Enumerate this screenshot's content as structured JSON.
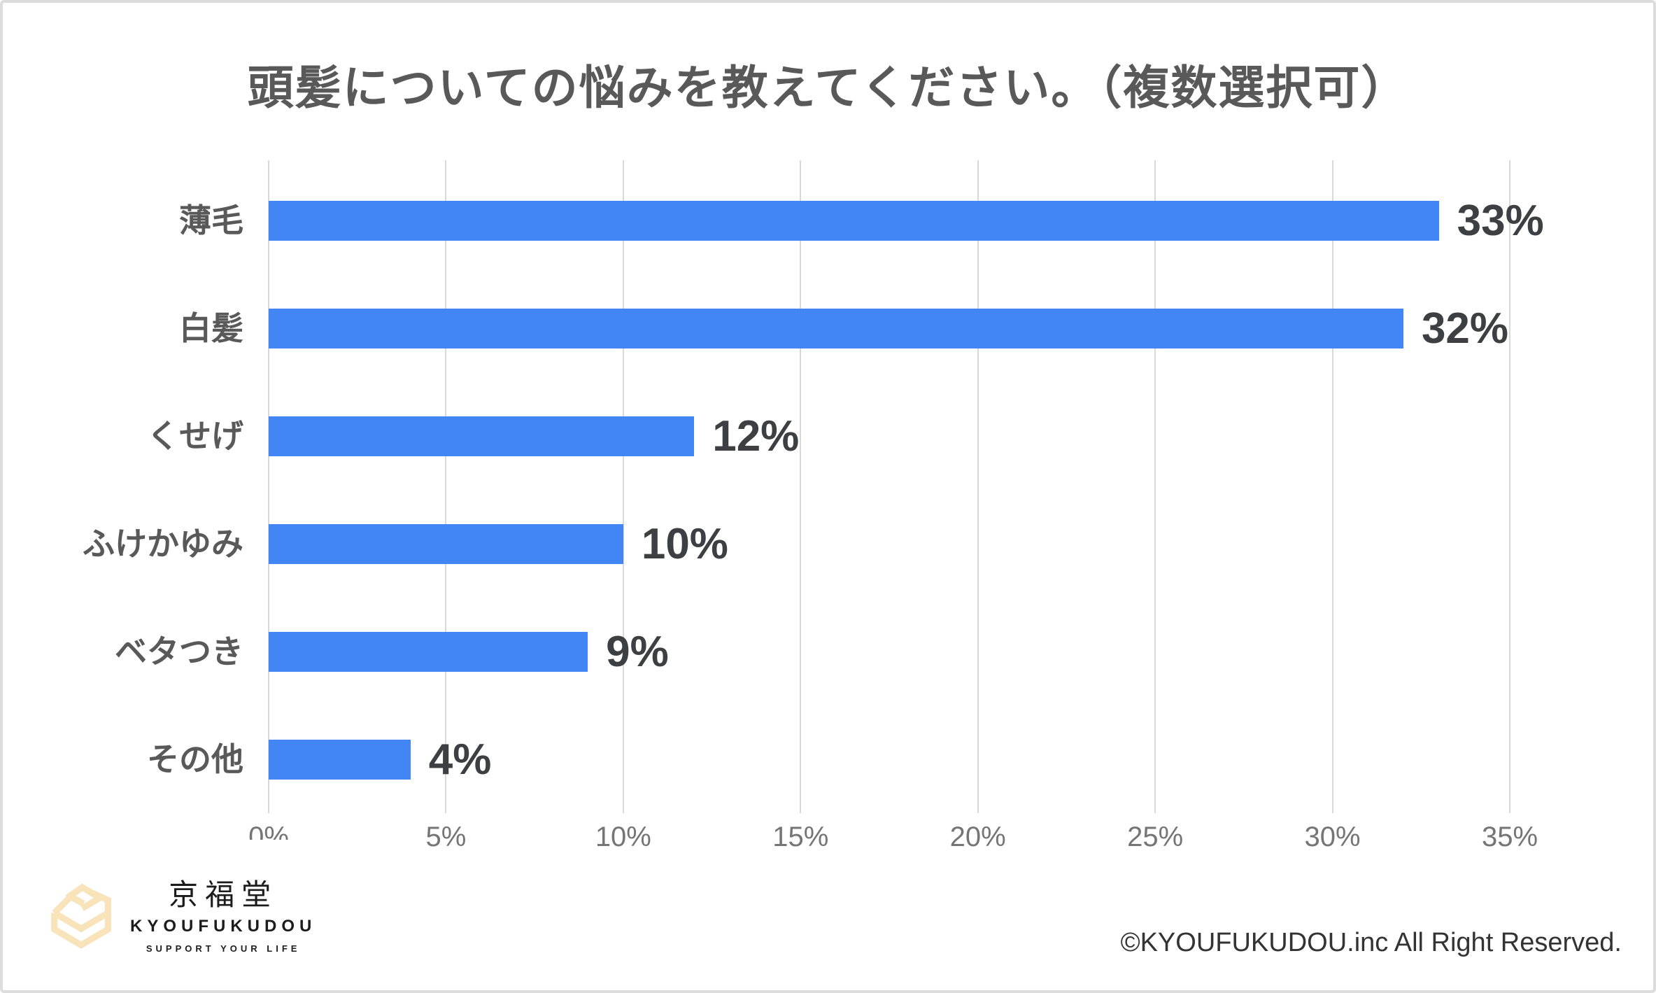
{
  "title": "頭髪についての悩みを教えてください。（複数選択可）",
  "chart_data": {
    "type": "bar",
    "orientation": "horizontal",
    "title": "頭髪についての悩みを教えてください。（複数選択可）",
    "categories": [
      "薄毛",
      "白髪",
      "くせげ",
      "ふけかゆみ",
      "ベタつき",
      "その他"
    ],
    "values": [
      33,
      32,
      12,
      10,
      9,
      4
    ],
    "value_labels": [
      "33%",
      "32%",
      "12%",
      "10%",
      "9%",
      "4%"
    ],
    "xlabel": "",
    "ylabel": "",
    "xlim": [
      0,
      35
    ],
    "x_tick_step": 5,
    "x_ticks": [
      "0%",
      "5%",
      "10%",
      "15%",
      "20%",
      "25%",
      "30%",
      "35%"
    ],
    "grid": "vertical",
    "legend": "none",
    "bar_color": "#4285F4",
    "gridline_color": "#d9d9d9",
    "category_label_color": "#595959",
    "value_label_color": "#3d3f42",
    "tick_label_color": "#757575"
  },
  "logo": {
    "name_jp": "京福堂",
    "name_en": "KYOUFUKUDOU",
    "tagline": "SUPPORT YOUR LIFE",
    "icon": "hexagon-chevron-cube-icon",
    "icon_color": "#F8E3BA"
  },
  "footer": {
    "copyright": "©KYOUFUKUDOU.inc All Right Reserved."
  }
}
